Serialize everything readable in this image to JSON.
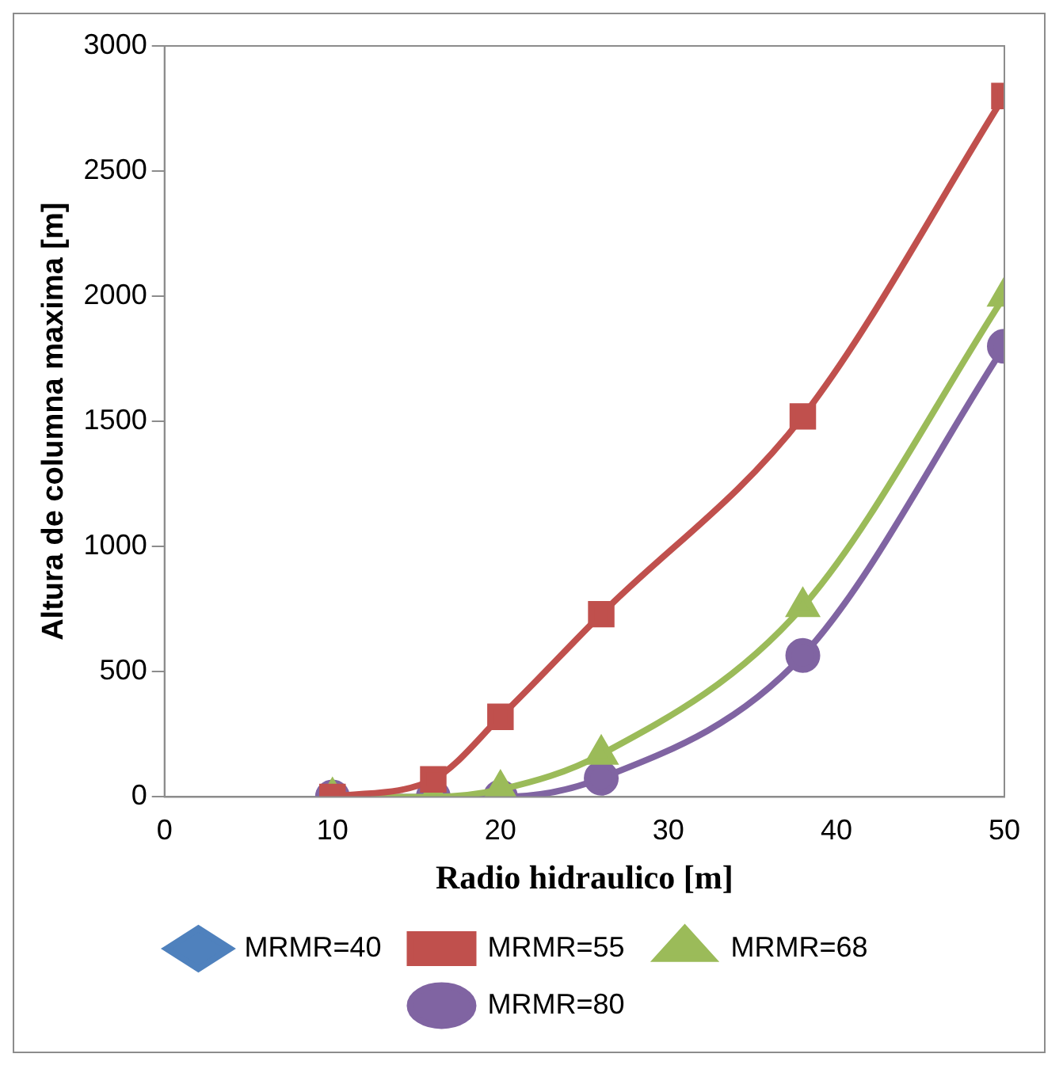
{
  "chart_data": {
    "type": "line",
    "xlabel": "Radio hidraulico [m]",
    "ylabel": "Altura de columna maxima [m]",
    "x": [
      10,
      16,
      20,
      26,
      38,
      50
    ],
    "series": [
      {
        "name": "MRMR=40",
        "color": "#4f81bd",
        "marker": "diamond",
        "values": [
          null,
          null,
          null,
          null,
          null,
          null
        ]
      },
      {
        "name": "MRMR=55",
        "color": "#c0504d",
        "marker": "square",
        "values": [
          0,
          70,
          320,
          730,
          1520,
          2800
        ]
      },
      {
        "name": "MRMR=68",
        "color": "#9bbb59",
        "marker": "triangle",
        "values": [
          0,
          0,
          30,
          170,
          760,
          2000
        ]
      },
      {
        "name": "MRMR=80",
        "color": "#8064a2",
        "marker": "circle",
        "values": [
          0,
          0,
          0,
          75,
          565,
          1800
        ]
      }
    ],
    "xlim": [
      0,
      50
    ],
    "xticks": [
      0,
      10,
      20,
      30,
      40,
      50
    ],
    "ylim": [
      0,
      3000
    ],
    "yticks": [
      0,
      500,
      1000,
      1500,
      2000,
      2500,
      3000
    ],
    "grid": false,
    "legend": "bottom",
    "line_style": "solid"
  }
}
